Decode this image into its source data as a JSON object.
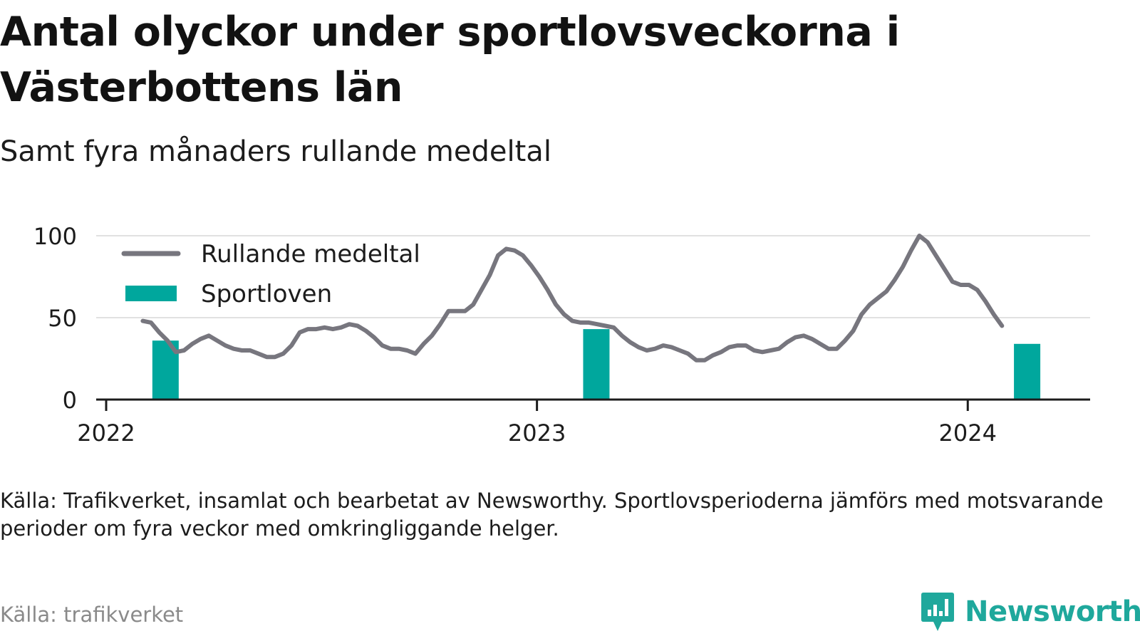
{
  "title": "Antal olyckor under sportlovsveckorna i Västerbottens län",
  "subtitle": "Samt fyra månaders rullande medeltal",
  "note": "Källa: Trafikverket, insamlat och bearbetat av Newsworthy. Sportlovsperioderna jämförs med motsvarande perioder om fyra veckor med omkringliggande helger.",
  "source": "Källa: trafikverket",
  "brand": {
    "name": "Newsworthy",
    "icon": "newsworthy-logo-icon"
  },
  "colors": {
    "line": "#77767e",
    "bars": "#00a79d",
    "grid": "#e1e1e1",
    "axis": "#1c1c1c",
    "brand": "#1fa89c"
  },
  "chart_data": {
    "type": "line+bar",
    "y_ticks": [
      0,
      50,
      100
    ],
    "ylim": [
      0,
      100
    ],
    "x_ticks": [
      {
        "label": "2022",
        "value": "2022-01-01"
      },
      {
        "label": "2023",
        "value": "2023-01-01"
      },
      {
        "label": "2024",
        "value": "2024-01-01"
      }
    ],
    "xlim": [
      "2022-01-01",
      "2024-04-01"
    ],
    "grid": "horizontal",
    "legend_position": "top-left",
    "series": [
      {
        "name": "Rullande medeltal",
        "type": "line",
        "points": [
          [
            "2022-02-01",
            48
          ],
          [
            "2022-02-08",
            47
          ],
          [
            "2022-02-15",
            41
          ],
          [
            "2022-02-22",
            36
          ],
          [
            "2022-03-01",
            29
          ],
          [
            "2022-03-08",
            30
          ],
          [
            "2022-03-15",
            34
          ],
          [
            "2022-03-22",
            37
          ],
          [
            "2022-03-29",
            39
          ],
          [
            "2022-04-05",
            36
          ],
          [
            "2022-04-12",
            33
          ],
          [
            "2022-04-19",
            31
          ],
          [
            "2022-04-26",
            30
          ],
          [
            "2022-05-03",
            30
          ],
          [
            "2022-05-10",
            28
          ],
          [
            "2022-05-17",
            26
          ],
          [
            "2022-05-24",
            26
          ],
          [
            "2022-05-31",
            28
          ],
          [
            "2022-06-07",
            33
          ],
          [
            "2022-06-14",
            41
          ],
          [
            "2022-06-21",
            43
          ],
          [
            "2022-06-28",
            43
          ],
          [
            "2022-07-05",
            44
          ],
          [
            "2022-07-12",
            43
          ],
          [
            "2022-07-19",
            44
          ],
          [
            "2022-07-26",
            46
          ],
          [
            "2022-08-02",
            45
          ],
          [
            "2022-08-09",
            42
          ],
          [
            "2022-08-16",
            38
          ],
          [
            "2022-08-23",
            33
          ],
          [
            "2022-08-30",
            31
          ],
          [
            "2022-09-06",
            31
          ],
          [
            "2022-09-13",
            30
          ],
          [
            "2022-09-20",
            28
          ],
          [
            "2022-09-27",
            34
          ],
          [
            "2022-10-04",
            39
          ],
          [
            "2022-10-11",
            46
          ],
          [
            "2022-10-18",
            54
          ],
          [
            "2022-10-25",
            54
          ],
          [
            "2022-11-01",
            54
          ],
          [
            "2022-11-08",
            58
          ],
          [
            "2022-11-15",
            67
          ],
          [
            "2022-11-22",
            76
          ],
          [
            "2022-11-29",
            88
          ],
          [
            "2022-12-06",
            92
          ],
          [
            "2022-12-13",
            91
          ],
          [
            "2022-12-20",
            88
          ],
          [
            "2022-12-27",
            82
          ],
          [
            "2023-01-03",
            75
          ],
          [
            "2023-01-10",
            67
          ],
          [
            "2023-01-17",
            58
          ],
          [
            "2023-01-24",
            52
          ],
          [
            "2023-01-31",
            48
          ],
          [
            "2023-02-07",
            47
          ],
          [
            "2023-02-14",
            47
          ],
          [
            "2023-02-21",
            46
          ],
          [
            "2023-02-28",
            45
          ],
          [
            "2023-03-07",
            44
          ],
          [
            "2023-03-14",
            39
          ],
          [
            "2023-03-21",
            35
          ],
          [
            "2023-03-28",
            32
          ],
          [
            "2023-04-04",
            30
          ],
          [
            "2023-04-11",
            31
          ],
          [
            "2023-04-18",
            33
          ],
          [
            "2023-04-25",
            32
          ],
          [
            "2023-05-02",
            30
          ],
          [
            "2023-05-09",
            28
          ],
          [
            "2023-05-16",
            24
          ],
          [
            "2023-05-23",
            24
          ],
          [
            "2023-05-30",
            27
          ],
          [
            "2023-06-06",
            29
          ],
          [
            "2023-06-13",
            32
          ],
          [
            "2023-06-20",
            33
          ],
          [
            "2023-06-27",
            33
          ],
          [
            "2023-07-04",
            30
          ],
          [
            "2023-07-11",
            29
          ],
          [
            "2023-07-18",
            30
          ],
          [
            "2023-07-25",
            31
          ],
          [
            "2023-08-01",
            35
          ],
          [
            "2023-08-08",
            38
          ],
          [
            "2023-08-15",
            39
          ],
          [
            "2023-08-22",
            37
          ],
          [
            "2023-08-29",
            34
          ],
          [
            "2023-09-05",
            31
          ],
          [
            "2023-09-12",
            31
          ],
          [
            "2023-09-19",
            36
          ],
          [
            "2023-09-26",
            42
          ],
          [
            "2023-10-03",
            52
          ],
          [
            "2023-10-10",
            58
          ],
          [
            "2023-10-17",
            62
          ],
          [
            "2023-10-24",
            66
          ],
          [
            "2023-10-31",
            73
          ],
          [
            "2023-11-07",
            81
          ],
          [
            "2023-11-14",
            91
          ],
          [
            "2023-11-21",
            100
          ],
          [
            "2023-11-28",
            96
          ],
          [
            "2023-12-05",
            88
          ],
          [
            "2023-12-12",
            80
          ],
          [
            "2023-12-19",
            72
          ],
          [
            "2023-12-26",
            70
          ],
          [
            "2024-01-02",
            70
          ],
          [
            "2024-01-09",
            67
          ],
          [
            "2024-01-16",
            60
          ],
          [
            "2024-01-23",
            52
          ],
          [
            "2024-01-30",
            45
          ]
        ]
      },
      {
        "name": "Sportloven",
        "type": "bar",
        "points": [
          [
            "2022-02-20",
            36
          ],
          [
            "2023-02-20",
            43
          ],
          [
            "2024-02-20",
            34
          ]
        ]
      }
    ]
  }
}
